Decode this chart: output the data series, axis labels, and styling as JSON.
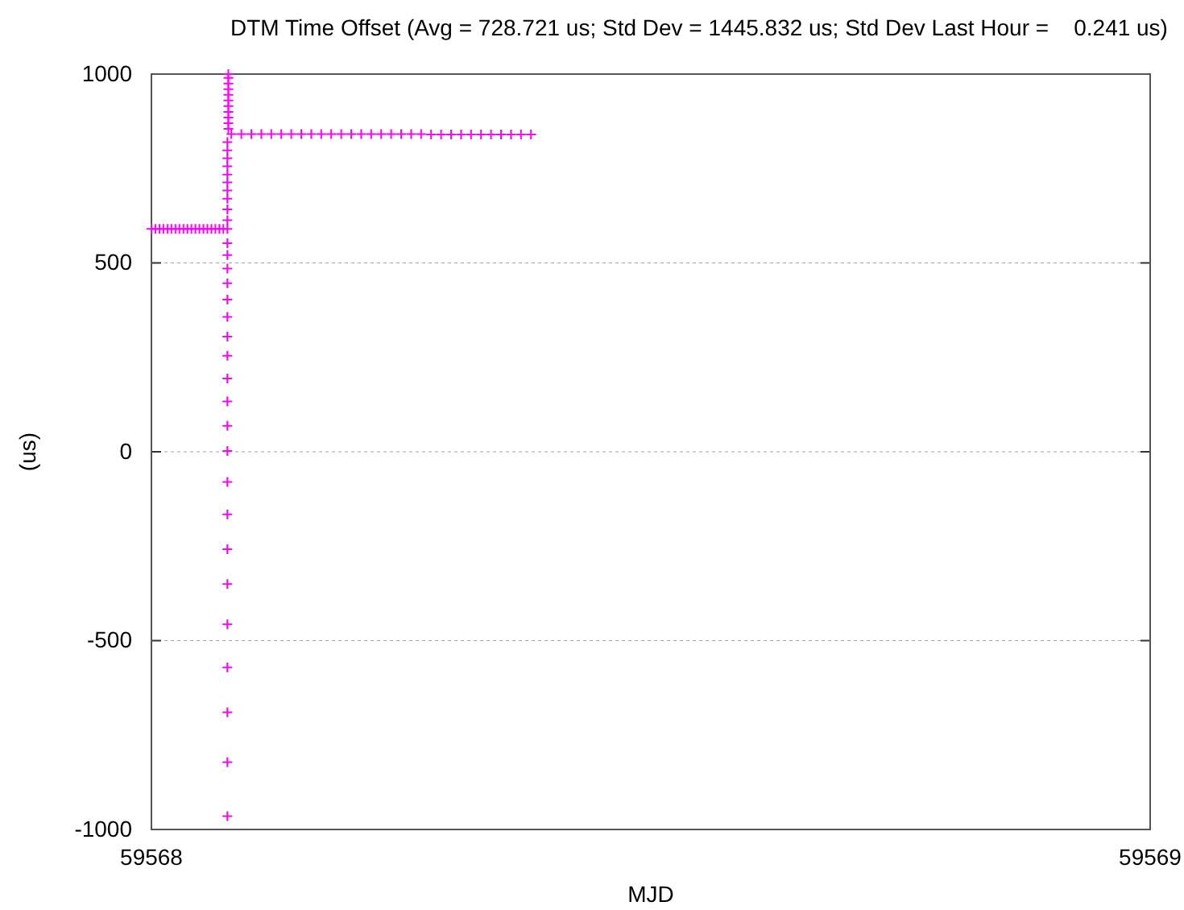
{
  "chart_data": {
    "type": "scatter",
    "title": "DTM Time Offset (Avg = 728.721 us; Std Dev = 1445.832 us; Std Dev Last Hour =    0.241 us)",
    "xlabel": "MJD",
    "ylabel": "(us)",
    "xlim": [
      59568,
      59569
    ],
    "xticks": [
      59568,
      59569
    ],
    "ylim": [
      -1000,
      1000
    ],
    "yticks": [
      -1000,
      -500,
      0,
      500,
      1000
    ],
    "grid": "y",
    "marker": "cross",
    "series": [
      {
        "color": "#ff00ff",
        "x": [
          59568.0,
          59568.004,
          59568.008,
          59568.012,
          59568.016,
          59568.02,
          59568.024,
          59568.028,
          59568.032,
          59568.036,
          59568.04,
          59568.044,
          59568.048,
          59568.052,
          59568.056,
          59568.06,
          59568.064,
          59568.068,
          59568.072
        ],
        "values": [
          590,
          590,
          590,
          590,
          590,
          590,
          590,
          590,
          590,
          590,
          590,
          590,
          590,
          590,
          590,
          590,
          590,
          590,
          590
        ]
      },
      {
        "color": "#ff00ff",
        "x": [
          59568.076,
          59568.076,
          59568.076,
          59568.076,
          59568.076,
          59568.076,
          59568.076,
          59568.076,
          59568.076,
          59568.076,
          59568.076,
          59568.076,
          59568.076,
          59568.076,
          59568.076,
          59568.076,
          59568.076,
          59568.076,
          59568.076,
          59568.076,
          59568.076,
          59568.076,
          59568.076,
          59568.076,
          59568.076,
          59568.076,
          59568.076,
          59568.076,
          59568.076,
          59568.076,
          59568.076,
          59568.076
        ],
        "values": [
          -965,
          -822,
          -690,
          -571,
          -457,
          -350,
          -258,
          -166,
          -80,
          2,
          69,
          133,
          194,
          254,
          305,
          357,
          403,
          446,
          485,
          521,
          552,
          590,
          613,
          642,
          670,
          692,
          713,
          734,
          756,
          777,
          798,
          820
        ]
      },
      {
        "color": "#ff00ff",
        "x": [
          59568.077,
          59568.077,
          59568.077,
          59568.077,
          59568.077,
          59568.077,
          59568.077,
          59568.077,
          59568.077,
          59568.077,
          59568.077
        ],
        "values": [
          855,
          870,
          885,
          900,
          915,
          930,
          945,
          960,
          975,
          990,
          1000
        ]
      },
      {
        "color": "#ff00ff",
        "x": [
          59568.08,
          59568.09,
          59568.1,
          59568.11,
          59568.12,
          59568.13,
          59568.14,
          59568.15,
          59568.16,
          59568.17,
          59568.18,
          59568.19,
          59568.2,
          59568.21,
          59568.22,
          59568.23,
          59568.24,
          59568.25,
          59568.26,
          59568.27,
          59568.28,
          59568.29,
          59568.3,
          59568.31,
          59568.32,
          59568.33,
          59568.34,
          59568.35,
          59568.36,
          59568.37,
          59568.38
        ],
        "values": [
          841,
          841,
          841,
          841,
          841,
          841,
          841,
          841,
          841,
          841,
          841,
          841,
          841,
          841,
          841,
          841,
          841,
          841,
          841,
          841,
          840,
          840,
          840,
          840,
          840,
          840,
          840,
          840,
          840,
          840,
          840
        ]
      }
    ]
  }
}
